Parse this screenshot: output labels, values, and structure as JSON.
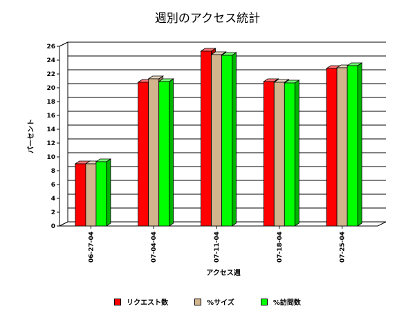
{
  "chart_data": {
    "type": "bar",
    "title": "週別のアクセス統計",
    "xlabel": "アクセス週",
    "ylabel": "パーセント",
    "ylim": [
      0,
      26
    ],
    "yticks": [
      0,
      2,
      4,
      6,
      8,
      10,
      12,
      14,
      16,
      18,
      20,
      22,
      24,
      26
    ],
    "grid": true,
    "legend_position": "bottom",
    "categories": [
      "06-27-04",
      "07-04-04",
      "07-11-04",
      "07-18-04",
      "07-25-04"
    ],
    "series": [
      {
        "name": "リクエスト数",
        "color": "#ff0000",
        "values": [
          9.0,
          20.8,
          25.3,
          20.9,
          22.8
        ]
      },
      {
        "name": "%サイズ",
        "color": "#d2b48c",
        "values": [
          9.0,
          21.3,
          24.8,
          20.8,
          22.9
        ]
      },
      {
        "name": "%訪問数",
        "color": "#00ff00",
        "values": [
          9.3,
          20.9,
          24.7,
          20.7,
          23.2
        ]
      }
    ]
  }
}
